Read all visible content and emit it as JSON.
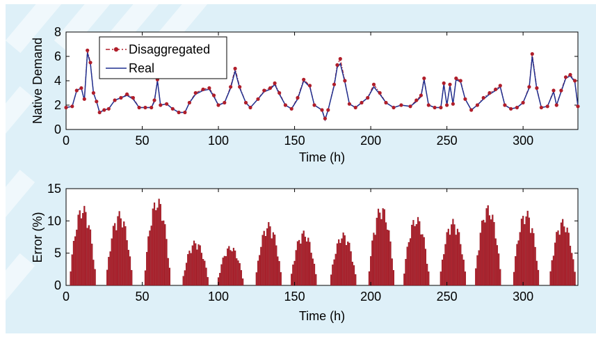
{
  "colors": {
    "panel_bg": "#def0f8",
    "real_line": "#1f2f8f",
    "disagg_marker": "#b01e2a",
    "error_bars": "#b01e2a"
  },
  "chart_data": [
    {
      "type": "line",
      "xlabel": "Time (h)",
      "ylabel": "Native Demand",
      "xlim": [
        0,
        336
      ],
      "ylim": [
        0,
        8
      ],
      "xticks": [
        0,
        50,
        100,
        150,
        200,
        250,
        300
      ],
      "yticks": [
        0,
        2,
        4,
        6,
        8
      ],
      "grid": false,
      "legend_position": "top-left",
      "series": [
        {
          "name": "Disaggregated",
          "style": "dash-dot with circle markers",
          "points": [
            [
              0,
              1.8
            ],
            [
              4,
              1.9
            ],
            [
              7,
              3.2
            ],
            [
              10,
              3.4
            ],
            [
              12,
              2.5
            ],
            [
              14,
              6.5
            ],
            [
              16,
              5.5
            ],
            [
              18,
              3.0
            ],
            [
              20,
              2.3
            ],
            [
              22,
              1.4
            ],
            [
              25,
              1.6
            ],
            [
              28,
              1.7
            ],
            [
              32,
              2.4
            ],
            [
              36,
              2.6
            ],
            [
              40,
              2.9
            ],
            [
              44,
              2.6
            ],
            [
              48,
              1.8
            ],
            [
              52,
              1.8
            ],
            [
              56,
              1.8
            ],
            [
              58,
              2.4
            ],
            [
              60,
              4.1
            ],
            [
              62,
              2.0
            ],
            [
              66,
              2.1
            ],
            [
              70,
              1.7
            ],
            [
              74,
              1.4
            ],
            [
              78,
              1.4
            ],
            [
              81,
              2.2
            ],
            [
              85,
              3.0
            ],
            [
              90,
              3.3
            ],
            [
              94,
              3.4
            ],
            [
              97,
              2.8
            ],
            [
              100,
              2.0
            ],
            [
              104,
              2.2
            ],
            [
              108,
              3.5
            ],
            [
              111,
              5.0
            ],
            [
              114,
              3.5
            ],
            [
              118,
              2.2
            ],
            [
              121,
              1.8
            ],
            [
              126,
              2.5
            ],
            [
              130,
              3.2
            ],
            [
              134,
              3.4
            ],
            [
              137,
              3.8
            ],
            [
              140,
              3.0
            ],
            [
              144,
              2.0
            ],
            [
              148,
              1.7
            ],
            [
              152,
              2.6
            ],
            [
              156,
              4.1
            ],
            [
              160,
              3.6
            ],
            [
              163,
              2.0
            ],
            [
              168,
              1.6
            ],
            [
              170,
              0.9
            ],
            [
              172,
              1.6
            ],
            [
              176,
              3.7
            ],
            [
              178,
              5.3
            ],
            [
              180,
              5.8
            ],
            [
              183,
              4.0
            ],
            [
              186,
              2.1
            ],
            [
              190,
              1.8
            ],
            [
              194,
              2.2
            ],
            [
              198,
              2.6
            ],
            [
              202,
              3.7
            ],
            [
              206,
              3.0
            ],
            [
              210,
              2.2
            ],
            [
              215,
              1.8
            ],
            [
              220,
              2.0
            ],
            [
              226,
              1.9
            ],
            [
              230,
              2.4
            ],
            [
              233,
              2.8
            ],
            [
              235,
              4.2
            ],
            [
              238,
              2.0
            ],
            [
              242,
              1.8
            ],
            [
              246,
              1.8
            ],
            [
              248,
              3.8
            ],
            [
              250,
              2.0
            ],
            [
              252,
              3.7
            ],
            [
              254,
              2.1
            ],
            [
              256,
              4.2
            ],
            [
              259,
              4.0
            ],
            [
              262,
              2.5
            ],
            [
              266,
              1.6
            ],
            [
              270,
              2.0
            ],
            [
              274,
              2.6
            ],
            [
              278,
              3.0
            ],
            [
              282,
              3.3
            ],
            [
              285,
              3.6
            ],
            [
              288,
              2.0
            ],
            [
              292,
              1.7
            ],
            [
              296,
              1.8
            ],
            [
              300,
              2.2
            ],
            [
              304,
              3.5
            ],
            [
              306,
              6.2
            ],
            [
              309,
              3.4
            ],
            [
              312,
              1.8
            ],
            [
              316,
              1.9
            ],
            [
              320,
              3.2
            ],
            [
              322,
              2.0
            ],
            [
              325,
              3.2
            ],
            [
              328,
              4.3
            ],
            [
              331,
              4.5
            ],
            [
              334,
              4.0
            ],
            [
              336,
              1.9
            ]
          ]
        },
        {
          "name": "Real",
          "style": "solid line",
          "points": [
            [
              0,
              1.8
            ],
            [
              4,
              1.9
            ],
            [
              7,
              3.2
            ],
            [
              10,
              3.4
            ],
            [
              12,
              2.4
            ],
            [
              14,
              6.3
            ],
            [
              16,
              5.4
            ],
            [
              18,
              3.0
            ],
            [
              20,
              2.3
            ],
            [
              22,
              1.4
            ],
            [
              25,
              1.6
            ],
            [
              28,
              1.7
            ],
            [
              32,
              2.4
            ],
            [
              36,
              2.6
            ],
            [
              40,
              2.8
            ],
            [
              44,
              2.5
            ],
            [
              48,
              1.8
            ],
            [
              52,
              1.8
            ],
            [
              56,
              1.8
            ],
            [
              58,
              2.3
            ],
            [
              60,
              4.0
            ],
            [
              62,
              2.0
            ],
            [
              66,
              2.1
            ],
            [
              70,
              1.7
            ],
            [
              74,
              1.4
            ],
            [
              78,
              1.4
            ],
            [
              81,
              2.2
            ],
            [
              85,
              2.9
            ],
            [
              90,
              3.2
            ],
            [
              94,
              3.3
            ],
            [
              97,
              2.7
            ],
            [
              100,
              2.0
            ],
            [
              104,
              2.2
            ],
            [
              108,
              3.4
            ],
            [
              111,
              4.8
            ],
            [
              114,
              3.4
            ],
            [
              118,
              2.2
            ],
            [
              121,
              1.8
            ],
            [
              126,
              2.5
            ],
            [
              130,
              3.1
            ],
            [
              134,
              3.3
            ],
            [
              137,
              3.7
            ],
            [
              140,
              2.9
            ],
            [
              144,
              2.0
            ],
            [
              148,
              1.7
            ],
            [
              152,
              2.5
            ],
            [
              156,
              4.0
            ],
            [
              160,
              3.5
            ],
            [
              163,
              2.0
            ],
            [
              168,
              1.6
            ],
            [
              170,
              0.8
            ],
            [
              172,
              1.6
            ],
            [
              176,
              3.6
            ],
            [
              178,
              5.1
            ],
            [
              180,
              5.4
            ],
            [
              183,
              3.9
            ],
            [
              186,
              2.1
            ],
            [
              190,
              1.8
            ],
            [
              194,
              2.2
            ],
            [
              198,
              2.6
            ],
            [
              202,
              3.5
            ],
            [
              206,
              2.9
            ],
            [
              210,
              2.2
            ],
            [
              215,
              1.8
            ],
            [
              220,
              2.0
            ],
            [
              226,
              1.9
            ],
            [
              230,
              2.3
            ],
            [
              233,
              2.7
            ],
            [
              235,
              4.1
            ],
            [
              238,
              2.0
            ],
            [
              242,
              1.8
            ],
            [
              246,
              1.8
            ],
            [
              248,
              3.7
            ],
            [
              250,
              2.0
            ],
            [
              252,
              3.6
            ],
            [
              254,
              2.1
            ],
            [
              256,
              4.1
            ],
            [
              259,
              3.9
            ],
            [
              262,
              2.5
            ],
            [
              266,
              1.6
            ],
            [
              270,
              2.0
            ],
            [
              274,
              2.5
            ],
            [
              278,
              2.9
            ],
            [
              282,
              3.2
            ],
            [
              285,
              3.5
            ],
            [
              288,
              2.0
            ],
            [
              292,
              1.7
            ],
            [
              296,
              1.8
            ],
            [
              300,
              2.2
            ],
            [
              304,
              3.4
            ],
            [
              306,
              6.0
            ],
            [
              309,
              3.3
            ],
            [
              312,
              1.8
            ],
            [
              316,
              1.9
            ],
            [
              320,
              3.1
            ],
            [
              322,
              2.0
            ],
            [
              325,
              3.1
            ],
            [
              328,
              4.2
            ],
            [
              331,
              4.4
            ],
            [
              334,
              3.9
            ],
            [
              336,
              1.9
            ]
          ]
        }
      ]
    },
    {
      "type": "bar",
      "xlabel": "Time (h)",
      "ylabel": "Error (%)",
      "xlim": [
        0,
        336
      ],
      "ylim": [
        0,
        15
      ],
      "xticks": [
        0,
        50,
        100,
        150,
        200,
        250,
        300
      ],
      "yticks": [
        0,
        5,
        10,
        15
      ],
      "grid": false,
      "bursts": [
        {
          "center": 11,
          "peak": 12.5
        },
        {
          "center": 35,
          "peak": 11.5
        },
        {
          "center": 60,
          "peak": 13.7
        },
        {
          "center": 85,
          "peak": 7.0
        },
        {
          "center": 108,
          "peak": 6.2
        },
        {
          "center": 133,
          "peak": 9.8
        },
        {
          "center": 156,
          "peak": 8.5
        },
        {
          "center": 182,
          "peak": 8.2
        },
        {
          "center": 207,
          "peak": 12.5
        },
        {
          "center": 230,
          "peak": 10.8
        },
        {
          "center": 254,
          "peak": 10.3
        },
        {
          "center": 277,
          "peak": 12.5
        },
        {
          "center": 302,
          "peak": 11.7
        },
        {
          "center": 326,
          "peak": 10.3
        }
      ]
    }
  ]
}
